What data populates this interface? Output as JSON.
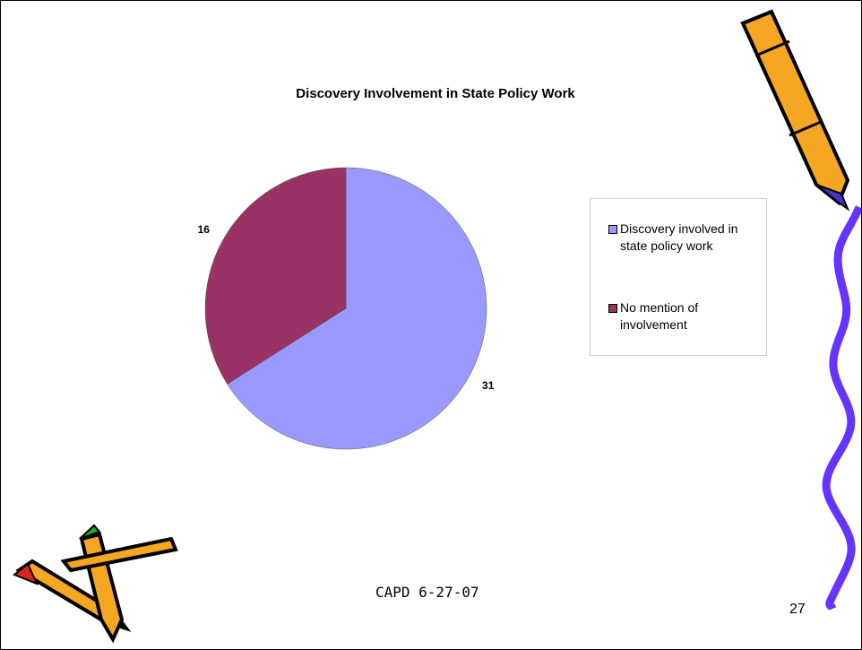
{
  "chart_data": {
    "type": "pie",
    "title": "Discovery Involvement in State Policy Work",
    "categories": [
      "Discovery involved in state policy work",
      "No mention of involvement"
    ],
    "values": [
      31,
      16
    ],
    "colors": [
      "#9999ff",
      "#993366"
    ]
  },
  "footer": "CAPD 6-27-07",
  "page_number": "27"
}
